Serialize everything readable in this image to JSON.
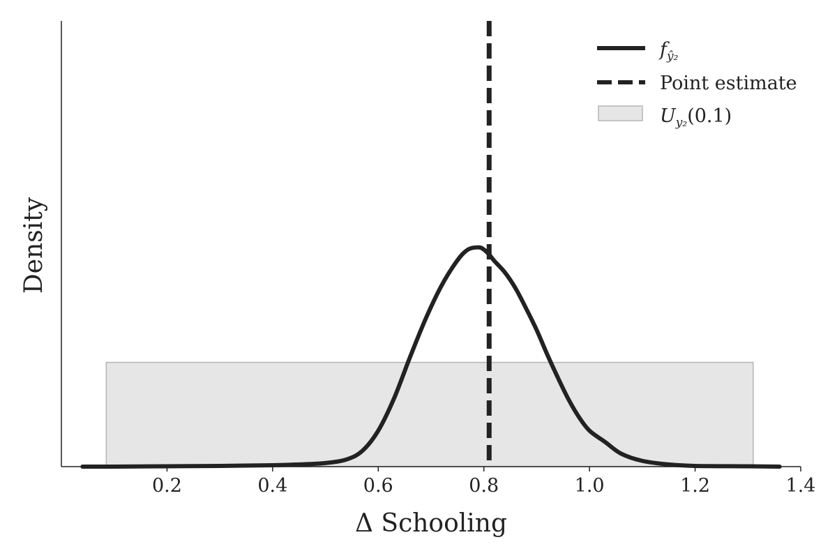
{
  "chart_data": {
    "type": "line",
    "xlabel": "Δ Schooling",
    "ylabel": "Density",
    "xlim": [
      0.0,
      1.4
    ],
    "ylim": [
      0.0,
      6.2
    ],
    "x_ticks": [
      "0.2",
      "0.4",
      "0.6",
      "0.8",
      "1.0",
      "1.2",
      "1.4"
    ],
    "grid": false,
    "legend_position": "top-right",
    "colors": {
      "curve": "#222222",
      "point_estimate": "#222222",
      "band_fill": "#e6e6e6",
      "band_edge": "#b5b5b5"
    },
    "series": [
      {
        "name": "f_ŷ₂",
        "style": "solid",
        "x": [
          0.04,
          0.1,
          0.2,
          0.3,
          0.4,
          0.45,
          0.5,
          0.54,
          0.57,
          0.6,
          0.63,
          0.66,
          0.69,
          0.72,
          0.75,
          0.77,
          0.79,
          0.8,
          0.81,
          0.82,
          0.84,
          0.86,
          0.88,
          0.9,
          0.92,
          0.94,
          0.96,
          0.98,
          1.0,
          1.03,
          1.06,
          1.1,
          1.15,
          1.2,
          1.3,
          1.36
        ],
        "y": [
          0.0,
          0.0,
          0.005,
          0.01,
          0.02,
          0.03,
          0.05,
          0.1,
          0.22,
          0.5,
          0.95,
          1.52,
          2.06,
          2.52,
          2.87,
          3.02,
          3.05,
          3.02,
          2.95,
          2.86,
          2.7,
          2.48,
          2.2,
          1.9,
          1.56,
          1.24,
          0.94,
          0.69,
          0.5,
          0.34,
          0.18,
          0.08,
          0.03,
          0.01,
          0.005,
          0.0
        ]
      }
    ],
    "annotations": [
      {
        "name": "Point estimate",
        "type": "vertical_line",
        "style": "dashed",
        "x": 0.81
      },
      {
        "name": "U_y₂(0.1)",
        "type": "band",
        "x_start": 0.085,
        "x_end": 1.31,
        "height": 1.45
      }
    ]
  },
  "legend": {
    "f_symbol": "f",
    "f_subscript": "ŷ₂",
    "point_estimate": "Point estimate",
    "u_symbol": "U",
    "u_subscript": "y₂",
    "u_argument": "(0.1)"
  }
}
